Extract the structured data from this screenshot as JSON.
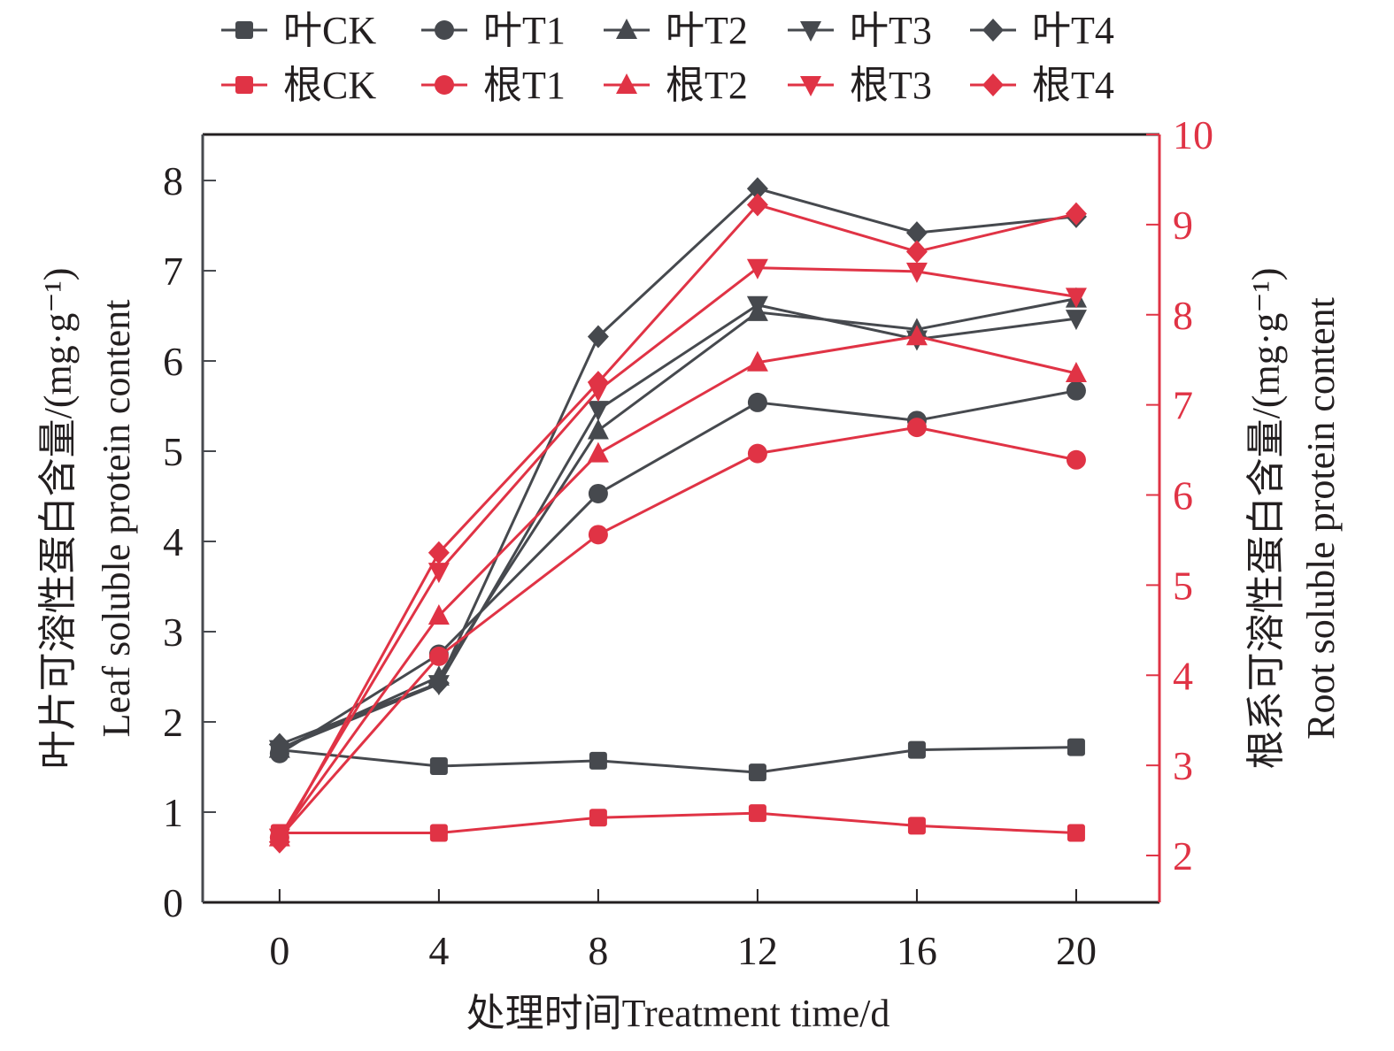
{
  "chart_data": {
    "type": "line",
    "title": "",
    "xlabel": "处理时间Treatment time/d",
    "ylabel_left": [
      "叶片可溶性蛋白含量/(mg·g⁻¹)",
      "Leaf soluble protein content"
    ],
    "ylabel_right": [
      "根系可溶性蛋白含量/(mg·g⁻¹)",
      "Root soluble protein content"
    ],
    "x": [
      0,
      4,
      8,
      12,
      16,
      20
    ],
    "xticks": [
      "0",
      "4",
      "8",
      "12",
      "16",
      "20"
    ],
    "xlim": [
      -1.93,
      22.09
    ],
    "ylim_left": [
      0,
      8.51
    ],
    "ylim_right": [
      1.48,
      10
    ],
    "yticks_left": [
      "0",
      "1",
      "2",
      "3",
      "4",
      "5",
      "6",
      "7",
      "8"
    ],
    "yticks_right": [
      "2",
      "3",
      "4",
      "5",
      "6",
      "7",
      "8",
      "9",
      "10"
    ],
    "grid": false,
    "legend_position": "top",
    "colors": {
      "leaf": "#46494e",
      "root": "#e03345",
      "axis_left": "#46494e",
      "axis_right": "#e03345",
      "text": "#231f20"
    },
    "series": [
      {
        "name": "叶CK",
        "axis": "left",
        "group": "leaf",
        "marker": "square",
        "values": [
          1.69,
          1.51,
          1.57,
          1.44,
          1.69,
          1.72
        ]
      },
      {
        "name": "叶T1",
        "axis": "left",
        "group": "leaf",
        "marker": "circle",
        "values": [
          1.65,
          2.75,
          4.53,
          5.54,
          5.34,
          5.67
        ]
      },
      {
        "name": "叶T2",
        "axis": "left",
        "group": "leaf",
        "marker": "triangle-up",
        "values": [
          1.7,
          2.5,
          5.23,
          6.54,
          6.35,
          6.69
        ]
      },
      {
        "name": "叶T3",
        "axis": "left",
        "group": "leaf",
        "marker": "triangle-down",
        "values": [
          1.7,
          2.42,
          5.46,
          6.62,
          6.24,
          6.47
        ]
      },
      {
        "name": "叶T4",
        "axis": "left",
        "group": "leaf",
        "marker": "diamond",
        "values": [
          1.75,
          2.43,
          6.27,
          7.91,
          7.42,
          7.6
        ]
      },
      {
        "name": "根CK",
        "axis": "right",
        "group": "root",
        "marker": "square",
        "values": [
          2.25,
          2.25,
          2.42,
          2.47,
          2.33,
          2.25
        ]
      },
      {
        "name": "根T1",
        "axis": "right",
        "group": "root",
        "marker": "circle",
        "values": [
          2.2,
          4.21,
          5.56,
          6.46,
          6.75,
          6.39
        ]
      },
      {
        "name": "根T2",
        "axis": "right",
        "group": "root",
        "marker": "triangle-up",
        "values": [
          2.2,
          4.66,
          6.46,
          7.47,
          7.76,
          7.35
        ]
      },
      {
        "name": "根T3",
        "axis": "right",
        "group": "root",
        "marker": "triangle-down",
        "values": [
          2.2,
          5.15,
          7.16,
          8.52,
          8.48,
          8.2
        ]
      },
      {
        "name": "根T4",
        "axis": "right",
        "group": "root",
        "marker": "diamond",
        "values": [
          2.15,
          5.36,
          7.25,
          9.22,
          8.7,
          9.12
        ]
      }
    ]
  }
}
